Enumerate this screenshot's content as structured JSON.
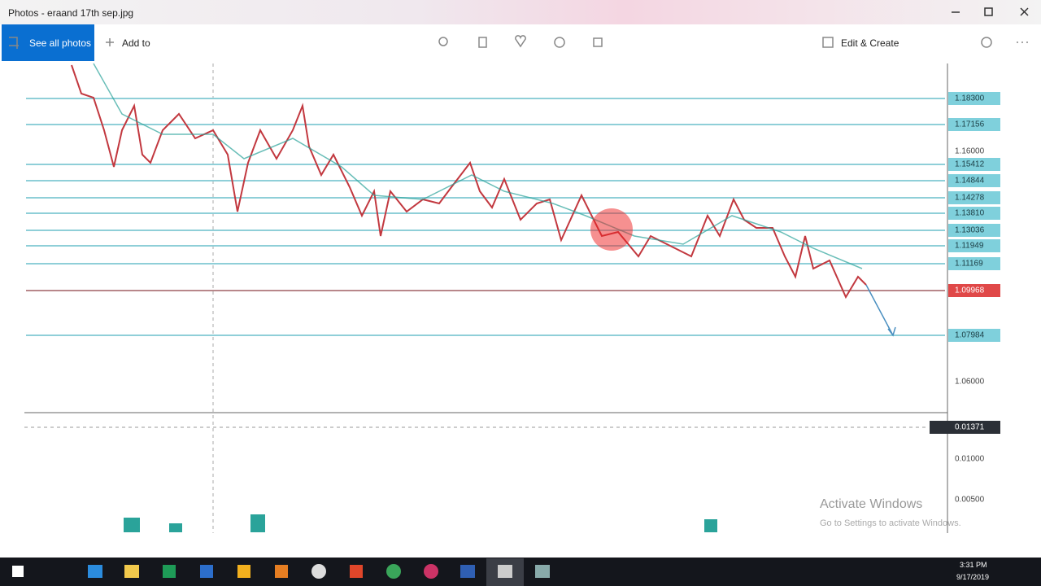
{
  "window": {
    "title": "Photos - eraand 17th sep.jpg"
  },
  "toolbar": {
    "see_all": "See all photos",
    "add_to": "Add to",
    "edit_create": "Edit & Create"
  },
  "image": {
    "price_labels": [
      {
        "text": "1.18300",
        "kind": "level"
      },
      {
        "text": "1.17156",
        "kind": "level"
      },
      {
        "text": "1.16000",
        "kind": "axis"
      },
      {
        "text": "1.15412",
        "kind": "level"
      },
      {
        "text": "1.14844",
        "kind": "level"
      },
      {
        "text": "1.14278",
        "kind": "level"
      },
      {
        "text": "1.13810",
        "kind": "level"
      },
      {
        "text": "1.13036",
        "kind": "level"
      },
      {
        "text": "1.11949",
        "kind": "level"
      },
      {
        "text": "1.11169",
        "kind": "level"
      },
      {
        "text": "1.09968",
        "kind": "current"
      },
      {
        "text": "1.07984",
        "kind": "level"
      },
      {
        "text": "1.06000",
        "kind": "axis"
      },
      {
        "text": "0.01371",
        "kind": "indicator"
      },
      {
        "text": "0.01000",
        "kind": "axis"
      },
      {
        "text": "0.00500",
        "kind": "axis"
      }
    ],
    "watermark": {
      "title": "Activate Windows",
      "subtitle": "Go to Settings to activate Windows."
    }
  },
  "taskbar": {
    "time": "3:31 PM",
    "date": "9/17/2019"
  }
}
